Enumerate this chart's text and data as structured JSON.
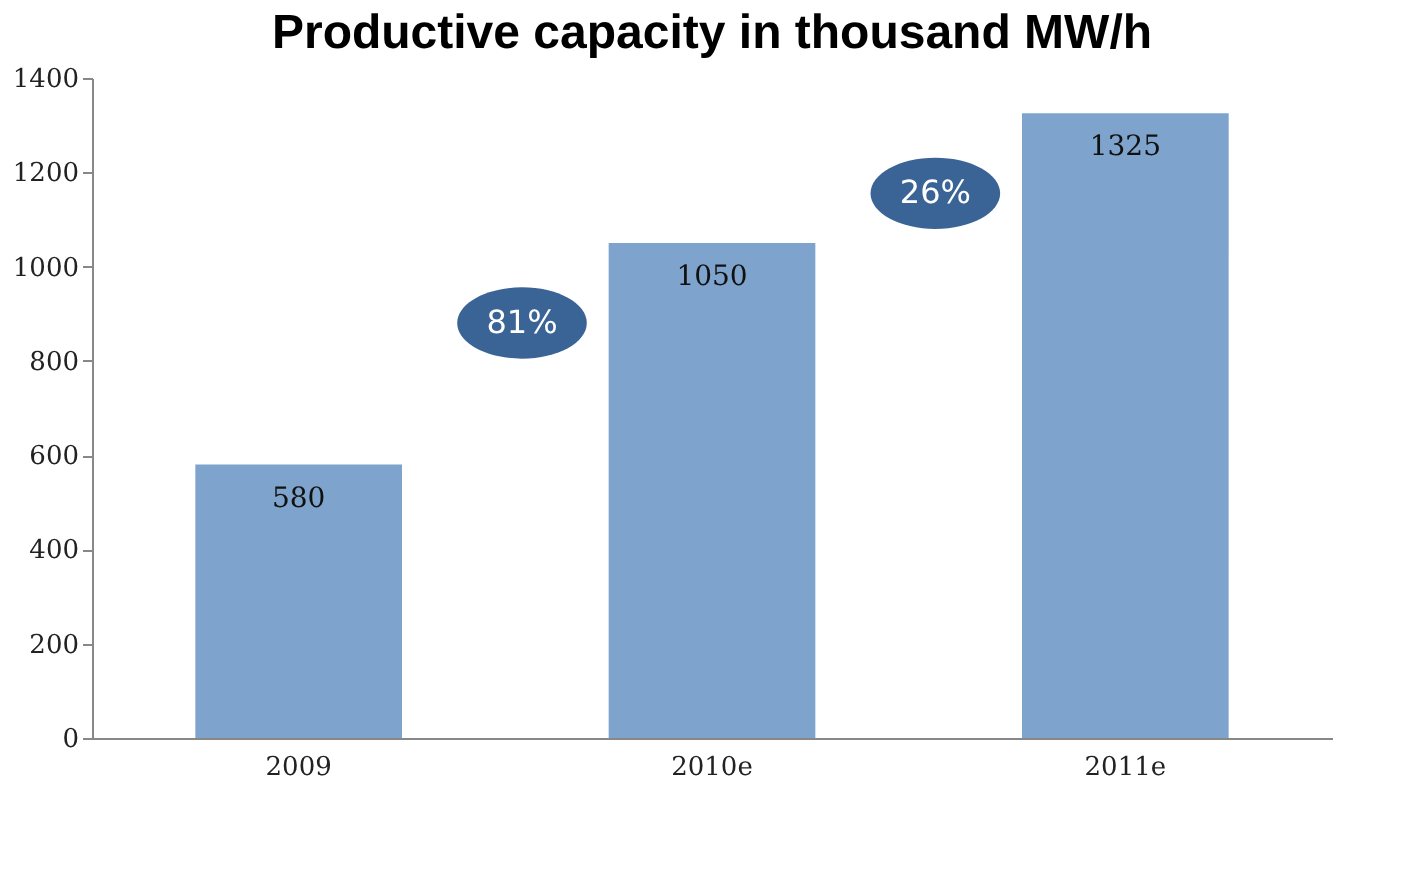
{
  "chart_data": {
    "type": "bar",
    "title": "Productive capacity in thousand MW/h",
    "categories": [
      "2009",
      "2010e",
      "2011e"
    ],
    "values": [
      580,
      1050,
      1325
    ],
    "color": "#7ea3cc",
    "ylim": [
      0,
      1400
    ],
    "yticks": [
      0,
      200,
      400,
      600,
      800,
      1000,
      1200,
      1400
    ],
    "grid": false,
    "data_labels": true,
    "annotations": [
      "81%",
      "26%"
    ]
  }
}
